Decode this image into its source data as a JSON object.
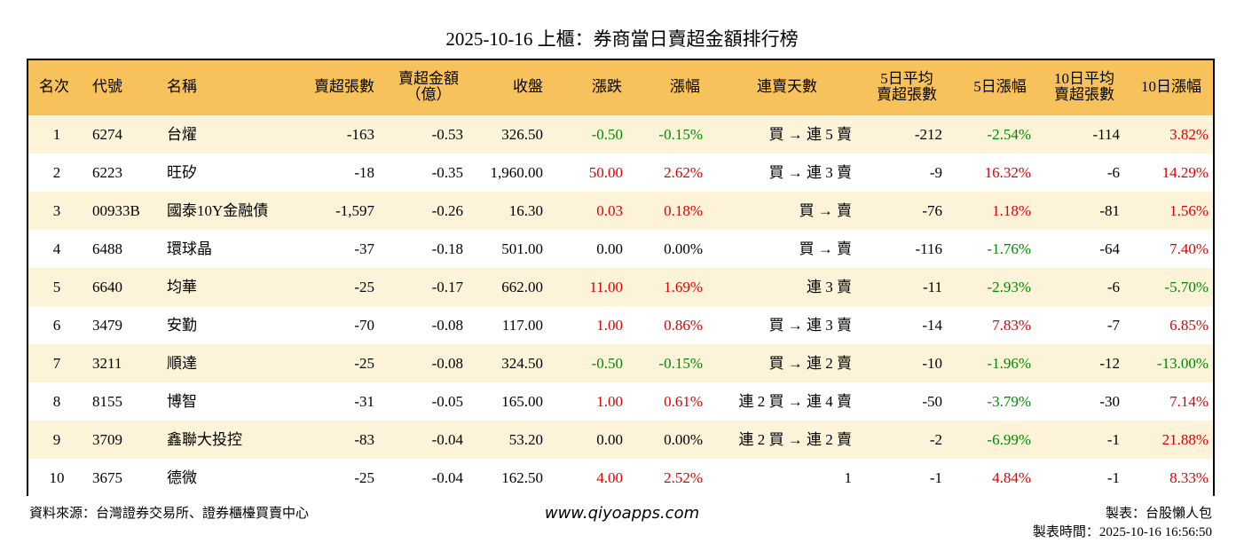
{
  "header": {
    "title": "2025-10-16 上櫃：券商當日賣超金額排行榜"
  },
  "table": {
    "columns": [
      [
        "名次"
      ],
      [
        "代號"
      ],
      [
        "名稱"
      ],
      [
        "賣超張數"
      ],
      [
        "賣超金額",
        "（億）"
      ],
      [
        "收盤"
      ],
      [
        "漲跌"
      ],
      [
        "漲幅"
      ],
      [
        "連賣天數"
      ],
      [
        "5日平均",
        "賣超張數"
      ],
      [
        "5日漲幅"
      ],
      [
        "10日平均",
        "賣超張數"
      ],
      [
        "10日漲幅"
      ]
    ],
    "rows": [
      [
        "1",
        "6274",
        "台燿",
        "-163",
        "-0.53",
        "326.50",
        "-0.50",
        "-0.15%",
        "買 → 連 5 賣",
        "-212",
        "-2.54%",
        "-114",
        "3.82%"
      ],
      [
        "2",
        "6223",
        "旺矽",
        "-18",
        "-0.35",
        "1,960.00",
        "50.00",
        "2.62%",
        "買 → 連 3 賣",
        "-9",
        "16.32%",
        "-6",
        "14.29%"
      ],
      [
        "3",
        "00933B",
        "國泰10Y金融債",
        "-1,597",
        "-0.26",
        "16.30",
        "0.03",
        "0.18%",
        "買 → 賣",
        "-76",
        "1.18%",
        "-81",
        "1.56%"
      ],
      [
        "4",
        "6488",
        "環球晶",
        "-37",
        "-0.18",
        "501.00",
        "0.00",
        "0.00%",
        "買 → 賣",
        "-116",
        "-1.76%",
        "-64",
        "7.40%"
      ],
      [
        "5",
        "6640",
        "均華",
        "-25",
        "-0.17",
        "662.00",
        "11.00",
        "1.69%",
        "連 3 賣",
        "-11",
        "-2.93%",
        "-6",
        "-5.70%"
      ],
      [
        "6",
        "3479",
        "安勤",
        "-70",
        "-0.08",
        "117.00",
        "1.00",
        "0.86%",
        "買 → 連 3 賣",
        "-14",
        "7.83%",
        "-7",
        "6.85%"
      ],
      [
        "7",
        "3211",
        "順達",
        "-25",
        "-0.08",
        "324.50",
        "-0.50",
        "-0.15%",
        "買 → 連 2 賣",
        "-10",
        "-1.96%",
        "-12",
        "-13.00%"
      ],
      [
        "8",
        "8155",
        "博智",
        "-31",
        "-0.05",
        "165.00",
        "1.00",
        "0.61%",
        "連 2 買 → 連 4 賣",
        "-50",
        "-3.79%",
        "-30",
        "7.14%"
      ],
      [
        "9",
        "3709",
        "鑫聯大投控",
        "-83",
        "-0.04",
        "53.20",
        "0.00",
        "0.00%",
        "連 2 買 → 連 2 賣",
        "-2",
        "-6.99%",
        "-1",
        "21.88%"
      ],
      [
        "10",
        "3675",
        "德微",
        "-25",
        "-0.04",
        "162.50",
        "4.00",
        "2.52%",
        "1",
        "-1",
        "4.84%",
        "-1",
        "8.33%"
      ]
    ]
  },
  "footer": {
    "source": "資料來源：台灣證券交易所、證券櫃檯買賣中心",
    "site": "www.qiyoapps.com",
    "maker": "製表：台股懶人包",
    "time": "製表時間：2025-10-16 16:56:50"
  }
}
